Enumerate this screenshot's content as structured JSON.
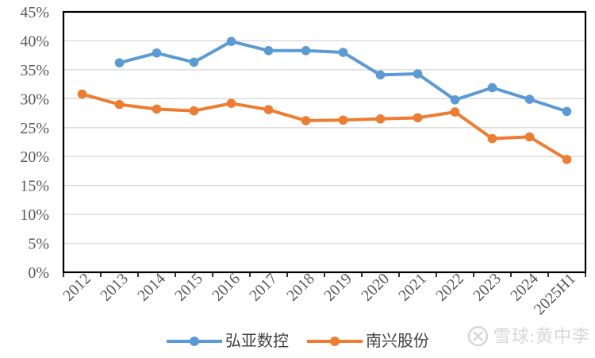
{
  "watermark": {
    "text": "雪球:黄中李",
    "logo": "xueqiu-circle-x-icon",
    "color": "#d7d7d7"
  },
  "style": {
    "background": "#ffffff",
    "plot_border_color": "#000000",
    "grid_color": "#d9d9d9",
    "axis_label_color": "#595959"
  },
  "chart_data": {
    "type": "line",
    "categories": [
      "2012",
      "2013",
      "2014",
      "2015",
      "2016",
      "2017",
      "2018",
      "2019",
      "2020",
      "2021",
      "2022",
      "2023",
      "2024",
      "2025H1"
    ],
    "series": [
      {
        "name": "弘亚数控",
        "color": "#5B9BD5",
        "values": [
          null,
          36.2,
          37.9,
          36.3,
          39.9,
          38.3,
          38.3,
          38.0,
          34.1,
          34.3,
          29.8,
          31.9,
          29.9,
          27.8
        ]
      },
      {
        "name": "南兴股份",
        "color": "#ED7D31",
        "values": [
          30.8,
          29.0,
          28.2,
          27.9,
          29.2,
          28.1,
          26.2,
          26.3,
          26.5,
          26.7,
          27.7,
          23.1,
          23.4,
          19.5
        ]
      }
    ],
    "title": "",
    "xlabel": "",
    "ylabel": "",
    "ylim": [
      0,
      45
    ],
    "ytick_step": 5,
    "ytick_labels": [
      "0%",
      "5%",
      "10%",
      "15%",
      "20%",
      "25%",
      "30%",
      "35%",
      "40%",
      "45%"
    ],
    "grid": true,
    "legend_position": "bottom"
  }
}
